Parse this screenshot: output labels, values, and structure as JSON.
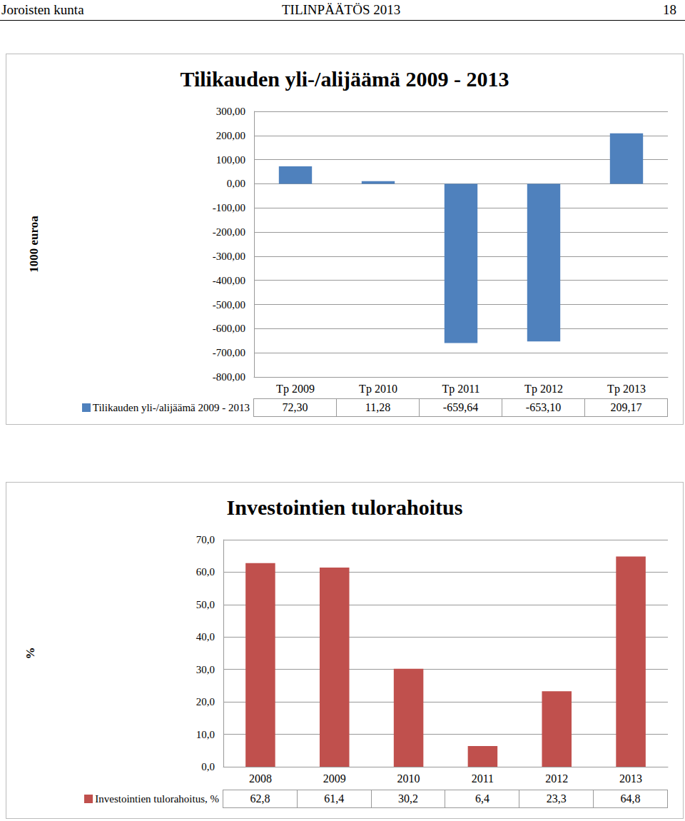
{
  "header": {
    "left": "Joroisten kunta",
    "center": "TILINPÄÄTÖS 2013",
    "page": "18"
  },
  "chart_data": [
    {
      "type": "bar",
      "title": "Tilikauden yli-/alijäämä 2009 - 2013",
      "ylabel": "1000 euroa",
      "categories": [
        "Tp 2009",
        "Tp 2010",
        "Tp 2011",
        "Tp 2012",
        "Tp 2013"
      ],
      "series": [
        {
          "name": "Tilikauden yli-/alijäämä 2009 - 2013",
          "color": "#4f81bd",
          "values": [
            72.3,
            11.28,
            -659.64,
            -653.1,
            209.17
          ],
          "value_labels": [
            "72,30",
            "11,28",
            "-659,64",
            "-653,10",
            "209,17"
          ]
        }
      ],
      "ylim": [
        -800,
        300
      ],
      "yticks": [
        {
          "value": -800,
          "label": "-800,00"
        },
        {
          "value": -700,
          "label": "-700,00"
        },
        {
          "value": -600,
          "label": "-600,00"
        },
        {
          "value": -500,
          "label": "-500,00"
        },
        {
          "value": -400,
          "label": "-400,00"
        },
        {
          "value": -300,
          "label": "-300,00"
        },
        {
          "value": -200,
          "label": "-200,00"
        },
        {
          "value": -100,
          "label": "-100,00"
        },
        {
          "value": 0,
          "label": "0,00"
        },
        {
          "value": 100,
          "label": "100,00"
        },
        {
          "value": 200,
          "label": "200,00"
        },
        {
          "value": 300,
          "label": "300,00"
        }
      ],
      "grid": true
    },
    {
      "type": "bar",
      "title": "Investointien tulorahoitus",
      "ylabel": "%",
      "categories": [
        "2008",
        "2009",
        "2010",
        "2011",
        "2012",
        "2013"
      ],
      "series": [
        {
          "name": "Investointien tulorahoitus, %",
          "color": "#c0504d",
          "values": [
            62.8,
            61.4,
            30.2,
            6.4,
            23.3,
            64.8
          ],
          "value_labels": [
            "62,8",
            "61,4",
            "30,2",
            "6,4",
            "23,3",
            "64,8"
          ]
        }
      ],
      "ylim": [
        0,
        70
      ],
      "yticks": [
        {
          "value": 0,
          "label": "0,0"
        },
        {
          "value": 10,
          "label": "10,0"
        },
        {
          "value": 20,
          "label": "20,0"
        },
        {
          "value": 30,
          "label": "30,0"
        },
        {
          "value": 40,
          "label": "40,0"
        },
        {
          "value": 50,
          "label": "50,0"
        },
        {
          "value": 60,
          "label": "60,0"
        },
        {
          "value": 70,
          "label": "70,0"
        }
      ],
      "grid": true
    }
  ]
}
